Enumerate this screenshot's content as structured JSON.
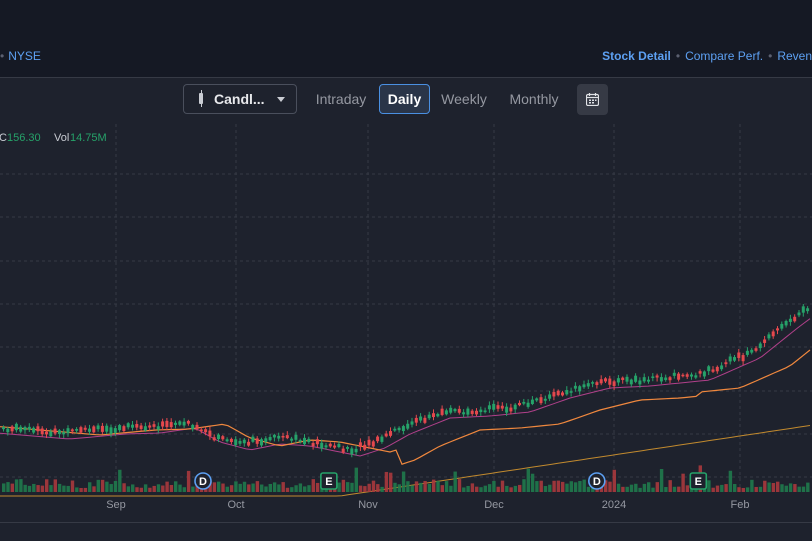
{
  "header": {
    "exchange": "NYSE",
    "nav": [
      {
        "label": "Stock Detail",
        "active": true
      },
      {
        "label": "Compare Perf.",
        "active": false
      },
      {
        "label": "Reven",
        "active": false
      }
    ]
  },
  "toolbar": {
    "chart_type": "Candl...",
    "periods": [
      {
        "label": "Intraday",
        "active": false
      },
      {
        "label": "Daily",
        "active": true
      },
      {
        "label": "Weekly",
        "active": false
      },
      {
        "label": "Monthly",
        "active": false
      }
    ],
    "calendar_icon": "calendar-icon"
  },
  "ohlc": {
    "c_label": "C",
    "c_value": "156.30",
    "vol_label": "Vol",
    "vol_value": "14.75M"
  },
  "colors": {
    "up": "#26a269",
    "down": "#e5484d",
    "ma_fast": "#b0408a",
    "ma_mid": "#f0883e",
    "ma_slow": "#c28a2e",
    "accent": "#5da0f2"
  },
  "chart_data": {
    "type": "candlestick",
    "x_ticks": [
      "Sep",
      "Oct",
      "Nov",
      "Dec",
      "2024",
      "Feb"
    ],
    "events": [
      {
        "label": "D",
        "kind": "dividend",
        "at": 0.25
      },
      {
        "label": "E",
        "kind": "earnings",
        "at": 0.405
      },
      {
        "label": "D",
        "kind": "dividend",
        "at": 0.735
      },
      {
        "label": "E",
        "kind": "earnings",
        "at": 0.86
      }
    ],
    "series": [
      {
        "kind": "candles"
      },
      {
        "kind": "moving-average"
      },
      {
        "kind": "moving-average"
      },
      {
        "kind": "moving-average"
      },
      {
        "kind": "volume"
      }
    ],
    "grid": true,
    "last_close": 156.3,
    "last_volume": 14.75
  }
}
